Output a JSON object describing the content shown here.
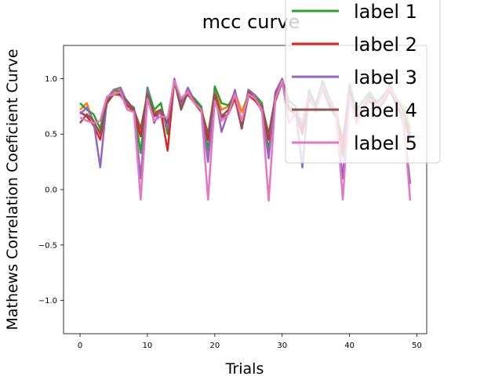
{
  "chart_data": {
    "type": "line",
    "title": "mcc curve",
    "xlabel": "Trials",
    "ylabel": "Mathews Correlation Coeficient Curve",
    "xlim": [
      -2.45,
      51.45
    ],
    "ylim": [
      -1.3,
      1.3
    ],
    "x_ticks": [
      0,
      10,
      20,
      30,
      40,
      50
    ],
    "y_ticks": [
      -1.0,
      -0.5,
      0.0,
      0.5,
      1.0
    ],
    "x_tick_labels": [
      "0",
      "10",
      "20",
      "30",
      "40",
      "50"
    ],
    "y_tick_labels": [
      "−1.0",
      "−0.5",
      "0.0",
      "0.5",
      "1.0"
    ],
    "grid": false,
    "legend_position": "top-right",
    "x": [
      0,
      1,
      2,
      3,
      4,
      5,
      6,
      7,
      8,
      9,
      10,
      11,
      12,
      13,
      14,
      15,
      16,
      17,
      18,
      19,
      20,
      21,
      22,
      23,
      24,
      25,
      26,
      27,
      28,
      29,
      30,
      31,
      32,
      33,
      34,
      35,
      36,
      37,
      38,
      39,
      40,
      41,
      42,
      43,
      44,
      45,
      46,
      47,
      48,
      49
    ],
    "series": [
      {
        "name": "label 1",
        "color": "#ff7f0e",
        "values": [
          0.72,
          0.78,
          0.6,
          0.52,
          0.8,
          0.88,
          0.9,
          0.75,
          0.72,
          0.5,
          0.88,
          0.7,
          0.72,
          0.55,
          0.98,
          0.82,
          0.85,
          0.8,
          0.72,
          0.5,
          0.9,
          0.72,
          0.75,
          0.88,
          0.7,
          0.86,
          0.82,
          0.75,
          0.5,
          0.8,
          0.98,
          0.75,
          0.72,
          0.6,
          0.85,
          0.78,
          0.95,
          0.8,
          0.72,
          0.4,
          0.9,
          0.7,
          0.75,
          0.85,
          0.8,
          0.82,
          0.95,
          0.8,
          0.75,
          0.55
        ]
      },
      {
        "name": "label 1",
        "color": "#2ca02c",
        "values": [
          0.78,
          0.72,
          0.68,
          0.55,
          0.82,
          0.9,
          0.88,
          0.78,
          0.74,
          0.33,
          0.92,
          0.72,
          0.78,
          0.5,
          0.97,
          0.8,
          0.88,
          0.82,
          0.75,
          0.35,
          0.93,
          0.78,
          0.76,
          0.85,
          0.6,
          0.9,
          0.85,
          0.78,
          0.35,
          0.85,
          0.99,
          0.8,
          0.75,
          0.55,
          0.9,
          0.75,
          0.98,
          0.82,
          0.7,
          0.3,
          0.95,
          0.72,
          0.8,
          0.88,
          0.78,
          0.85,
          0.92,
          0.82,
          0.7,
          0.5
        ]
      },
      {
        "name": "label 2",
        "color": "#d62728",
        "values": [
          0.7,
          0.66,
          0.58,
          0.45,
          0.78,
          0.86,
          0.85,
          0.76,
          0.7,
          0.48,
          0.85,
          0.66,
          0.7,
          0.35,
          0.99,
          0.78,
          0.86,
          0.78,
          0.7,
          0.45,
          0.88,
          0.65,
          0.68,
          0.82,
          0.55,
          0.85,
          0.8,
          0.72,
          0.45,
          0.8,
          0.97,
          0.72,
          0.68,
          0.5,
          0.82,
          0.72,
          0.92,
          0.75,
          0.65,
          0.35,
          0.88,
          0.62,
          0.72,
          0.8,
          0.72,
          0.78,
          0.9,
          0.75,
          0.65,
          0.45
        ]
      },
      {
        "name": "label 3",
        "color": "#9467bd",
        "values": [
          0.68,
          0.74,
          0.62,
          0.2,
          0.82,
          0.9,
          0.92,
          0.78,
          0.72,
          0.1,
          0.9,
          0.6,
          0.72,
          0.55,
          1.0,
          0.75,
          0.92,
          0.8,
          0.72,
          0.25,
          0.88,
          0.52,
          0.7,
          0.9,
          0.55,
          0.9,
          0.85,
          0.7,
          0.28,
          0.88,
          1.0,
          0.75,
          0.7,
          0.2,
          0.88,
          0.7,
          0.96,
          0.78,
          0.65,
          0.1,
          0.92,
          0.6,
          0.75,
          0.85,
          0.72,
          0.8,
          0.95,
          0.78,
          0.6,
          0.05
        ]
      },
      {
        "name": "label 4",
        "color": "#8c564b",
        "values": [
          0.6,
          0.68,
          0.62,
          0.5,
          0.8,
          0.86,
          0.86,
          0.8,
          0.72,
          0.55,
          0.86,
          0.68,
          0.72,
          0.6,
          0.98,
          0.72,
          0.88,
          0.8,
          0.72,
          0.5,
          0.86,
          0.66,
          0.72,
          0.86,
          0.55,
          0.88,
          0.82,
          0.75,
          0.5,
          0.84,
          0.98,
          0.72,
          0.68,
          0.55,
          0.86,
          0.72,
          0.94,
          0.76,
          0.68,
          0.45,
          0.9,
          0.65,
          0.72,
          0.84,
          0.75,
          0.8,
          0.92,
          0.76,
          0.66,
          0.5
        ]
      },
      {
        "name": "label 5",
        "color": "#e377c2",
        "values": [
          0.65,
          0.62,
          0.6,
          0.62,
          0.84,
          0.86,
          0.88,
          0.72,
          0.7,
          -0.09,
          0.82,
          0.62,
          0.66,
          0.65,
          0.98,
          0.82,
          0.88,
          0.78,
          0.72,
          -0.09,
          0.8,
          0.62,
          0.68,
          0.86,
          0.62,
          0.86,
          0.82,
          0.72,
          -0.1,
          0.82,
          0.98,
          0.6,
          0.7,
          0.62,
          0.86,
          0.7,
          0.94,
          0.8,
          0.7,
          -0.09,
          0.85,
          0.6,
          0.72,
          0.82,
          0.75,
          0.8,
          0.92,
          0.8,
          0.66,
          -0.1
        ]
      }
    ],
    "legend_entries": [
      {
        "label": "label 1",
        "color": "#2ca02c"
      },
      {
        "label": "label 2",
        "color": "#d62728"
      },
      {
        "label": "label 3",
        "color": "#9467bd"
      },
      {
        "label": "label 4",
        "color": "#8c564b"
      },
      {
        "label": "label 5",
        "color": "#e377c2"
      }
    ]
  }
}
